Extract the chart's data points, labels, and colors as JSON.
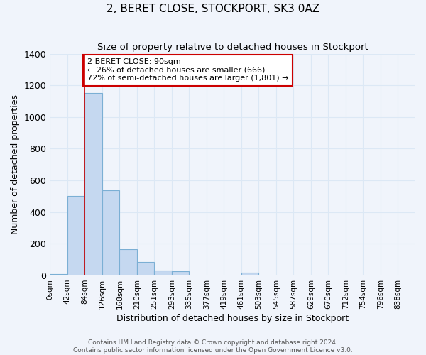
{
  "title": "2, BERET CLOSE, STOCKPORT, SK3 0AZ",
  "subtitle": "Size of property relative to detached houses in Stockport",
  "xlabel": "Distribution of detached houses by size in Stockport",
  "ylabel": "Number of detached properties",
  "bin_labels": [
    "0sqm",
    "42sqm",
    "84sqm",
    "126sqm",
    "168sqm",
    "210sqm",
    "251sqm",
    "293sqm",
    "335sqm",
    "377sqm",
    "419sqm",
    "461sqm",
    "503sqm",
    "545sqm",
    "587sqm",
    "629sqm",
    "670sqm",
    "712sqm",
    "754sqm",
    "796sqm",
    "838sqm"
  ],
  "bar_heights": [
    10,
    500,
    1150,
    540,
    165,
    85,
    30,
    25,
    0,
    0,
    0,
    20,
    0,
    0,
    0,
    0,
    0,
    0,
    0,
    0,
    0
  ],
  "bar_color": "#c5d8f0",
  "bar_edge_color": "#7bafd4",
  "background_color": "#f0f4fb",
  "grid_color": "#dce8f5",
  "ylim": [
    0,
    1400
  ],
  "yticks": [
    0,
    200,
    400,
    600,
    800,
    1000,
    1200,
    1400
  ],
  "red_line_bin_index": 2,
  "annotation_text": "2 BERET CLOSE: 90sqm\n← 26% of detached houses are smaller (666)\n72% of semi-detached houses are larger (1,801) →",
  "annotation_color": "#cc0000",
  "footer_line1": "Contains HM Land Registry data © Crown copyright and database right 2024.",
  "footer_line2": "Contains public sector information licensed under the Open Government Licence v3.0."
}
